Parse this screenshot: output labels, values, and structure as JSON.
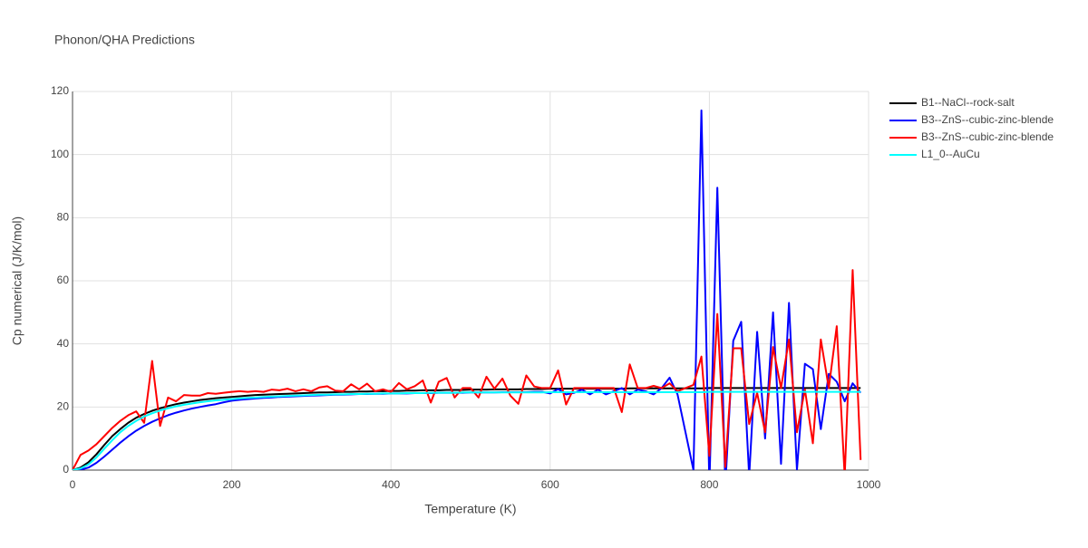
{
  "chart_data": {
    "type": "line",
    "title": "Phonon/QHA Predictions",
    "x_label": "Temperature (K)",
    "y_label": "Cp numerical (J/K/mol)",
    "x": [
      0,
      10,
      20,
      30,
      40,
      50,
      60,
      70,
      80,
      90,
      100,
      110,
      120,
      130,
      140,
      150,
      160,
      170,
      180,
      190,
      200,
      210,
      220,
      230,
      240,
      250,
      260,
      270,
      280,
      290,
      300,
      310,
      320,
      330,
      340,
      350,
      360,
      370,
      380,
      390,
      400,
      410,
      420,
      430,
      440,
      450,
      460,
      470,
      480,
      490,
      500,
      510,
      520,
      530,
      540,
      550,
      560,
      570,
      580,
      590,
      600,
      610,
      620,
      630,
      640,
      650,
      660,
      670,
      680,
      690,
      700,
      710,
      720,
      730,
      740,
      750,
      760,
      770,
      780,
      790,
      800,
      810,
      820,
      830,
      840,
      850,
      860,
      870,
      880,
      890,
      900,
      910,
      920,
      930,
      940,
      950,
      960,
      970,
      980,
      990
    ],
    "series": [
      {
        "name": "B1--NaCl--rock-salt",
        "color": "#000000",
        "values": [
          0,
          0.8,
          2.5,
          5,
          8,
          10.8,
          13,
          15,
          16.6,
          17.8,
          18.8,
          19.6,
          20.3,
          20.9,
          21.4,
          21.8,
          22.2,
          22.5,
          22.8,
          23.0,
          23.2,
          23.4,
          23.6,
          23.8,
          23.9,
          24.0,
          24.1,
          24.2,
          24.3,
          24.4,
          24.5,
          24.6,
          24.6,
          24.7,
          24.8,
          24.8,
          24.9,
          24.9,
          25.0,
          25.0,
          25.1,
          25.1,
          25.2,
          25.2,
          25.3,
          25.3,
          25.3,
          25.4,
          25.4,
          25.4,
          25.5,
          25.5,
          25.5,
          25.6,
          25.6,
          25.6,
          25.6,
          25.7,
          25.7,
          25.7,
          25.8,
          25.8,
          25.8,
          25.8,
          25.8,
          25.8,
          25.8,
          25.8,
          25.8,
          25.8,
          25.9,
          25.9,
          25.9,
          25.9,
          25.9,
          25.9,
          25.9,
          25.9,
          25.9,
          25.9,
          26.0,
          26.0,
          26.0,
          26.0,
          26.0,
          26.0,
          26.0,
          26.0,
          26.0,
          26.0,
          26.0,
          26.0,
          26.0,
          26.0,
          26.0,
          26.0,
          26.0,
          26.0,
          26.0,
          26.0
        ]
      },
      {
        "name": "B3--ZnS--cubic-zinc-blende",
        "color": "#0000ff",
        "values": [
          0,
          0.1,
          0.8,
          2.3,
          4.3,
          6.5,
          8.7,
          10.7,
          12.5,
          14,
          15.3,
          16.4,
          17.4,
          18.2,
          18.9,
          19.5,
          20.0,
          20.5,
          20.9,
          21.5,
          22.0,
          22.3,
          22.5,
          22.7,
          22.9,
          23.0,
          23.2,
          23.3,
          23.4,
          23.5,
          23.6,
          23.7,
          23.8,
          23.9,
          23.9,
          24.0,
          24.1,
          24.1,
          24.2,
          24.2,
          24.3,
          24.3,
          24.3,
          24.4,
          24.4,
          24.4,
          24.5,
          24.5,
          24.5,
          24.5,
          24.6,
          24.6,
          24.6,
          24.6,
          24.7,
          24.7,
          24.7,
          24.7,
          24.8,
          24.8,
          24.3,
          25.7,
          24,
          24.5,
          25.5,
          24,
          25.5,
          24,
          25,
          26,
          24,
          25.5,
          25,
          24,
          26,
          29.3,
          24,
          12,
          0,
          114,
          -5,
          89.5,
          -5,
          41,
          47,
          -2,
          43.8,
          10,
          50,
          2,
          53,
          0,
          33.7,
          32,
          13,
          30.5,
          28,
          21.8,
          27.5,
          24.5
        ]
      },
      {
        "name": "B3--ZnS--cubic-zinc-blende",
        "color": "#ff0000",
        "values": [
          0,
          4.8,
          6.2,
          8.2,
          10.8,
          13.4,
          15.6,
          17.4,
          18.6,
          15,
          34.6,
          14,
          23,
          21.8,
          23.8,
          23.6,
          23.6,
          24.4,
          24.2,
          24.5,
          24.8,
          25,
          24.8,
          25,
          24.8,
          25.5,
          25.3,
          25.8,
          25,
          25.6,
          25,
          26.2,
          26.6,
          25.2,
          25,
          27.2,
          25.6,
          27.4,
          25,
          25.6,
          24.8,
          27.6,
          25.6,
          26.6,
          28.4,
          21.4,
          28,
          29.2,
          23,
          26,
          26,
          23,
          29.6,
          25.8,
          29,
          23.6,
          21,
          30,
          26.5,
          26,
          26,
          31.6,
          20.8,
          26,
          26,
          26,
          26,
          26,
          26,
          18.4,
          33.5,
          26,
          26,
          26.7,
          26,
          27.5,
          25,
          26,
          27,
          36,
          4.5,
          49.5,
          1,
          38.6,
          38.6,
          14.6,
          24.5,
          12,
          39,
          26,
          41.4,
          12,
          25.6,
          8.5,
          41.4,
          26,
          45.6,
          -2,
          63.4,
          3.2
        ]
      },
      {
        "name": "L1_0--AuCu",
        "color": "#00ffff",
        "values": [
          0,
          0.5,
          1.8,
          4,
          6.8,
          9.5,
          12,
          14,
          15.6,
          17,
          18,
          18.9,
          19.6,
          20.2,
          20.7,
          21.1,
          21.5,
          21.8,
          22.1,
          22.3,
          22.5,
          22.7,
          22.9,
          23.0,
          23.2,
          23.3,
          23.4,
          23.5,
          23.6,
          23.7,
          23.8,
          23.9,
          23.9,
          24.0,
          24.0,
          24.1,
          24.1,
          24.2,
          24.2,
          24.3,
          24.3,
          24.3,
          24.4,
          24.4,
          24.4,
          24.5,
          24.5,
          24.5,
          24.5,
          24.6,
          24.6,
          24.6,
          24.6,
          24.6,
          24.6,
          24.6,
          24.6,
          24.6,
          24.6,
          24.6,
          24.7,
          24.7,
          24.7,
          24.7,
          24.7,
          24.7,
          24.7,
          24.7,
          24.7,
          24.7,
          24.7,
          24.7,
          24.7,
          24.7,
          24.7,
          24.7,
          24.7,
          24.7,
          24.7,
          24.7,
          24.8,
          24.8,
          24.8,
          24.8,
          24.8,
          24.8,
          24.8,
          24.8,
          24.8,
          24.8,
          24.8,
          24.8,
          24.8,
          24.8,
          24.8,
          24.8,
          24.8,
          24.8,
          24.8,
          24.8
        ]
      }
    ],
    "xlim": [
      0,
      1000
    ],
    "xticks": [
      0,
      200,
      400,
      600,
      800,
      1000
    ],
    "ylim": [
      0,
      120
    ],
    "yticks": [
      0,
      20,
      40,
      60,
      80,
      100,
      120
    ],
    "grid": true,
    "legend": "right"
  }
}
